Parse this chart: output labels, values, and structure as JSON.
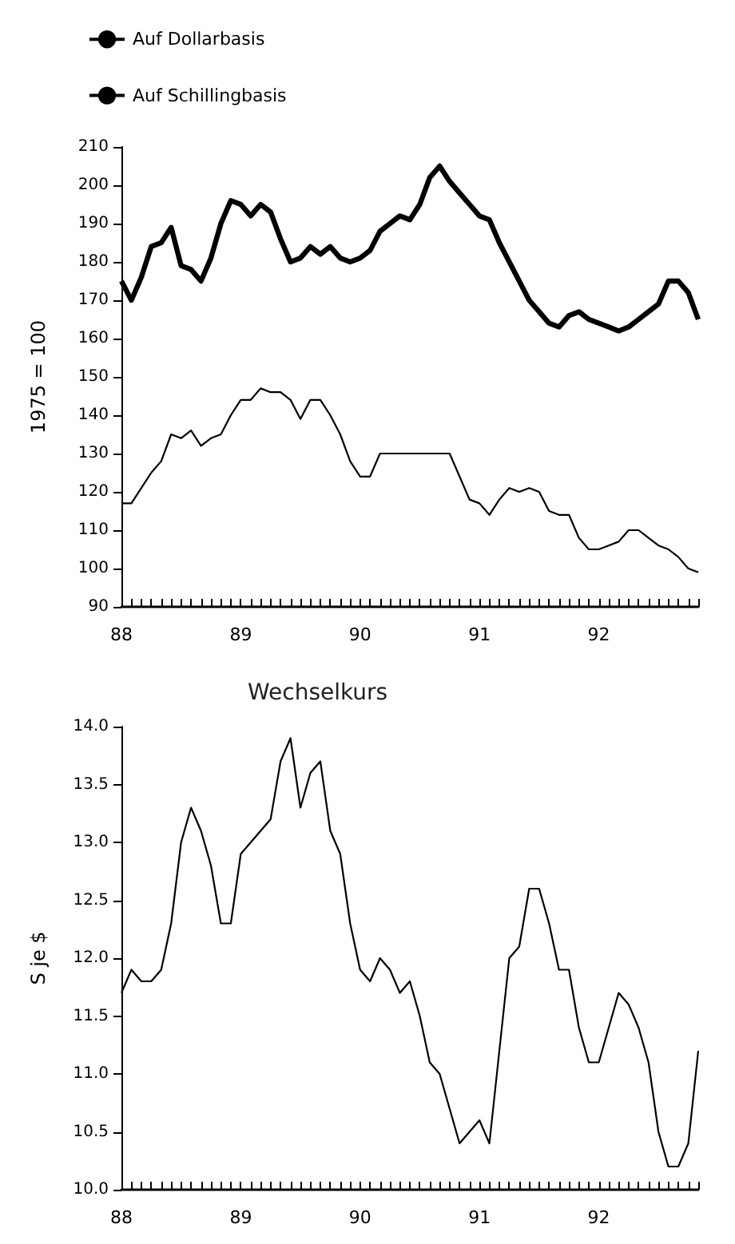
{
  "chart_data": [
    {
      "type": "line",
      "ylabel": "1975 = 100",
      "legend": "top left",
      "marker": "none",
      "line_style": "solid",
      "grid": false,
      "categories": [
        "88",
        null,
        null,
        null,
        null,
        null,
        null,
        null,
        null,
        null,
        null,
        null,
        "89",
        null,
        null,
        null,
        null,
        null,
        null,
        null,
        null,
        null,
        null,
        null,
        "90",
        null,
        null,
        null,
        null,
        null,
        null,
        null,
        null,
        null,
        null,
        null,
        "91",
        null,
        null,
        null,
        null,
        null,
        null,
        null,
        null,
        null,
        null,
        null,
        "92",
        null,
        null,
        null,
        null,
        null,
        null,
        null,
        null,
        null,
        null
      ],
      "ylim": [
        90,
        210
      ],
      "yticks": [
        90,
        100,
        110,
        120,
        130,
        140,
        150,
        160,
        170,
        180,
        190,
        200,
        210
      ],
      "series": [
        {
          "name": "Auf Dollarbasis",
          "color": "#000000",
          "values": [
            175,
            170,
            176,
            184,
            185,
            189,
            179,
            178,
            175,
            181,
            190,
            196,
            195,
            192,
            195,
            193,
            186,
            180,
            181,
            184,
            182,
            184,
            181,
            180,
            181,
            183,
            188,
            190,
            192,
            191,
            195,
            202,
            205,
            201,
            198,
            195,
            192,
            191,
            185,
            180,
            175,
            170,
            167,
            164,
            163,
            166,
            167,
            165,
            164,
            163,
            162,
            163,
            165,
            167,
            169,
            175,
            175,
            172,
            165
          ]
        },
        {
          "name": "Auf Schillingbasis",
          "color": "#000000",
          "values": [
            117,
            117,
            121,
            125,
            128,
            135,
            134,
            136,
            132,
            134,
            135,
            140,
            144,
            144,
            147,
            146,
            146,
            144,
            139,
            144,
            144,
            140,
            135,
            128,
            124,
            124,
            130,
            130,
            130,
            130,
            130,
            130,
            130,
            130,
            124,
            118,
            117,
            114,
            118,
            121,
            120,
            121,
            120,
            115,
            114,
            114,
            108,
            105,
            105,
            106,
            107,
            110,
            110,
            108,
            106,
            105,
            103,
            100,
            99
          ]
        }
      ]
    },
    {
      "type": "line",
      "title": "Wechselkurs",
      "ylabel": "S je $",
      "marker": "none",
      "line_style": "solid",
      "grid": false,
      "categories": [
        "88",
        null,
        null,
        null,
        null,
        null,
        null,
        null,
        null,
        null,
        null,
        null,
        "89",
        null,
        null,
        null,
        null,
        null,
        null,
        null,
        null,
        null,
        null,
        null,
        "90",
        null,
        null,
        null,
        null,
        null,
        null,
        null,
        null,
        null,
        null,
        null,
        "91",
        null,
        null,
        null,
        null,
        null,
        null,
        null,
        null,
        null,
        null,
        null,
        "92",
        null,
        null,
        null,
        null,
        null,
        null,
        null,
        null,
        null,
        null
      ],
      "ylim": [
        10,
        14
      ],
      "yticks": [
        {
          "value": 10,
          "label": "10.0"
        },
        10.5,
        {
          "value": 11,
          "label": "11.0"
        },
        11.5,
        {
          "value": 12,
          "label": "12.0"
        },
        12.5,
        {
          "value": 13,
          "label": "13.0"
        },
        13.5,
        {
          "value": 14,
          "label": "14.0"
        }
      ],
      "series": [
        {
          "color": "#000000",
          "values": [
            11.7,
            11.9,
            11.8,
            11.8,
            11.9,
            12.3,
            13.0,
            13.3,
            13.1,
            12.8,
            12.3,
            12.3,
            12.9,
            13.0,
            13.1,
            13.2,
            13.7,
            13.9,
            13.3,
            13.6,
            13.7,
            13.1,
            12.9,
            12.3,
            11.9,
            11.8,
            12.0,
            11.9,
            11.7,
            11.8,
            11.5,
            11.1,
            11.0,
            10.7,
            10.4,
            10.5,
            10.6,
            10.4,
            11.2,
            12.0,
            12.1,
            12.6,
            12.6,
            12.3,
            11.9,
            11.9,
            11.4,
            11.1,
            11.1,
            11.4,
            11.7,
            11.6,
            11.4,
            11.1,
            10.5,
            10.2,
            10.2,
            10.4,
            11.2
          ]
        }
      ]
    }
  ]
}
